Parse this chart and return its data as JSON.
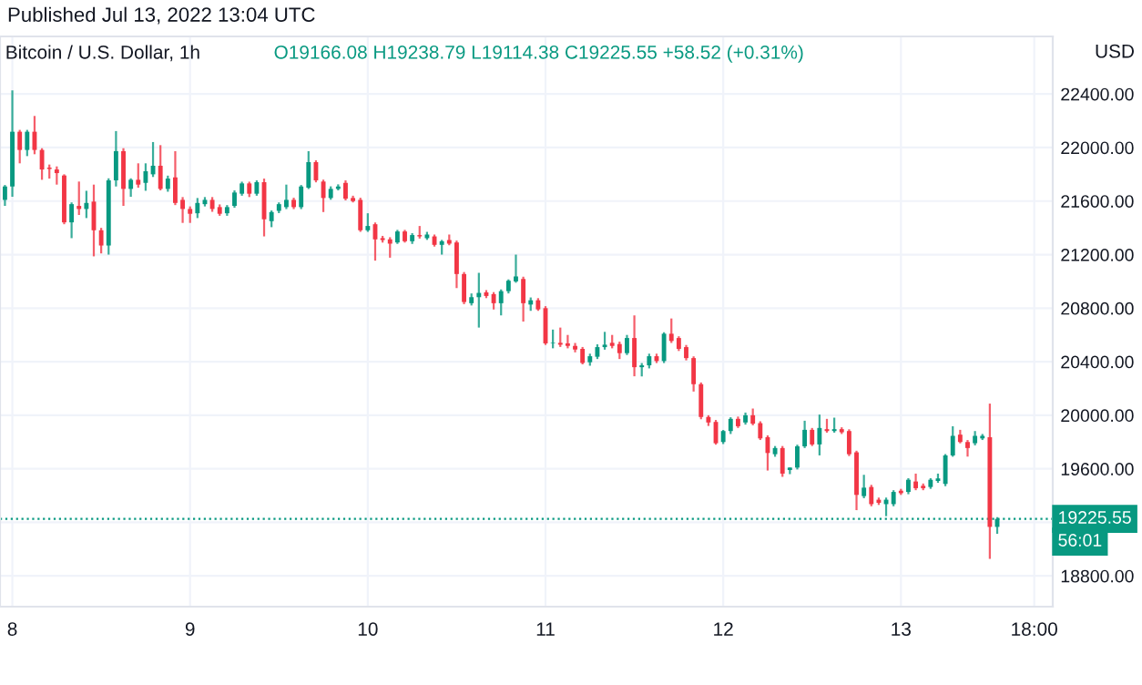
{
  "chart_data": {
    "type": "candlestick",
    "title": "Bitcoin / U.S. Dollar, 1h",
    "subtitle": "O19166.08 H19238.79 L19114.38 C19225.55 +58.52 (+0.31%)",
    "ylabel": "USD",
    "annotations": [
      "Published Jul 13, 2022 13:04 UTC",
      "56:01"
    ],
    "x": [
      "2022-07-07T23:00",
      "2022-07-08T00:00",
      "2022-07-08T01:00",
      "2022-07-08T02:00",
      "2022-07-08T03:00",
      "2022-07-08T04:00",
      "2022-07-08T05:00",
      "2022-07-08T06:00",
      "2022-07-08T07:00",
      "2022-07-08T08:00",
      "2022-07-08T09:00",
      "2022-07-08T10:00",
      "2022-07-08T11:00",
      "2022-07-08T12:00",
      "2022-07-08T13:00",
      "2022-07-08T14:00",
      "2022-07-08T15:00",
      "2022-07-08T16:00",
      "2022-07-08T17:00",
      "2022-07-08T18:00",
      "2022-07-08T19:00",
      "2022-07-08T20:00",
      "2022-07-08T21:00",
      "2022-07-08T22:00",
      "2022-07-08T23:00",
      "2022-07-09T00:00",
      "2022-07-09T01:00",
      "2022-07-09T02:00",
      "2022-07-09T03:00",
      "2022-07-09T04:00",
      "2022-07-09T05:00",
      "2022-07-09T06:00",
      "2022-07-09T07:00",
      "2022-07-09T08:00",
      "2022-07-09T09:00",
      "2022-07-09T10:00",
      "2022-07-09T11:00",
      "2022-07-09T12:00",
      "2022-07-09T13:00",
      "2022-07-09T14:00",
      "2022-07-09T15:00",
      "2022-07-09T16:00",
      "2022-07-09T17:00",
      "2022-07-09T18:00",
      "2022-07-09T19:00",
      "2022-07-09T20:00",
      "2022-07-09T21:00",
      "2022-07-09T22:00",
      "2022-07-09T23:00",
      "2022-07-10T00:00",
      "2022-07-10T01:00",
      "2022-07-10T02:00",
      "2022-07-10T03:00",
      "2022-07-10T04:00",
      "2022-07-10T05:00",
      "2022-07-10T06:00",
      "2022-07-10T07:00",
      "2022-07-10T08:00",
      "2022-07-10T09:00",
      "2022-07-10T10:00",
      "2022-07-10T11:00",
      "2022-07-10T12:00",
      "2022-07-10T13:00",
      "2022-07-10T14:00",
      "2022-07-10T15:00",
      "2022-07-10T16:00",
      "2022-07-10T17:00",
      "2022-07-10T18:00",
      "2022-07-10T19:00",
      "2022-07-10T20:00",
      "2022-07-10T21:00",
      "2022-07-10T22:00",
      "2022-07-10T23:00",
      "2022-07-11T00:00",
      "2022-07-11T01:00",
      "2022-07-11T02:00",
      "2022-07-11T03:00",
      "2022-07-11T04:00",
      "2022-07-11T05:00",
      "2022-07-11T06:00",
      "2022-07-11T07:00",
      "2022-07-11T08:00",
      "2022-07-11T09:00",
      "2022-07-11T10:00",
      "2022-07-11T11:00",
      "2022-07-11T12:00",
      "2022-07-11T13:00",
      "2022-07-11T14:00",
      "2022-07-11T15:00",
      "2022-07-11T16:00",
      "2022-07-11T17:00",
      "2022-07-11T18:00",
      "2022-07-11T19:00",
      "2022-07-11T20:00",
      "2022-07-11T21:00",
      "2022-07-11T22:00",
      "2022-07-11T23:00",
      "2022-07-12T00:00",
      "2022-07-12T01:00",
      "2022-07-12T02:00",
      "2022-07-12T03:00",
      "2022-07-12T04:00",
      "2022-07-12T05:00",
      "2022-07-12T06:00",
      "2022-07-12T07:00",
      "2022-07-12T08:00",
      "2022-07-12T09:00",
      "2022-07-12T10:00",
      "2022-07-12T11:00",
      "2022-07-12T12:00",
      "2022-07-12T13:00",
      "2022-07-12T14:00",
      "2022-07-12T15:00",
      "2022-07-12T16:00",
      "2022-07-12T17:00",
      "2022-07-12T18:00",
      "2022-07-12T19:00",
      "2022-07-12T20:00",
      "2022-07-12T21:00",
      "2022-07-12T22:00",
      "2022-07-12T23:00",
      "2022-07-13T00:00",
      "2022-07-13T01:00",
      "2022-07-13T02:00",
      "2022-07-13T03:00",
      "2022-07-13T04:00",
      "2022-07-13T05:00",
      "2022-07-13T06:00",
      "2022-07-13T07:00",
      "2022-07-13T08:00",
      "2022-07-13T09:00",
      "2022-07-13T10:00",
      "2022-07-13T11:00",
      "2022-07-13T12:00",
      "2022-07-13T13:00"
    ],
    "ohlc": [
      [
        21609,
        21720,
        21564,
        21709
      ],
      [
        21709,
        22427,
        21632,
        22118
      ],
      [
        22118,
        22132,
        21882,
        21982
      ],
      [
        21982,
        22132,
        21936,
        22118
      ],
      [
        22118,
        22236,
        21950,
        21982
      ],
      [
        21982,
        21995,
        21759,
        21836
      ],
      [
        21850,
        21873,
        21768,
        21840
      ],
      [
        21836,
        21859,
        21723,
        21809
      ],
      [
        21791,
        21800,
        21427,
        21441
      ],
      [
        21441,
        21590,
        21323,
        21577
      ],
      [
        21564,
        21746,
        21496,
        21541
      ],
      [
        21541,
        21677,
        21473,
        21586
      ],
      [
        21596,
        21723,
        21187,
        21382
      ],
      [
        21382,
        21400,
        21209,
        21268
      ],
      [
        21268,
        21770,
        21200,
        21755
      ],
      [
        21755,
        22123,
        21709,
        21973
      ],
      [
        21973,
        21995,
        21564,
        21691
      ],
      [
        21691,
        21770,
        21632,
        21759
      ],
      [
        21759,
        21882,
        21700,
        21723
      ],
      [
        21736,
        21882,
        21677,
        21823
      ],
      [
        21800,
        22041,
        21780,
        21864
      ],
      [
        21864,
        22018,
        21680,
        21691
      ],
      [
        21691,
        21790,
        21670,
        21768
      ],
      [
        21777,
        21973,
        21570,
        21586
      ],
      [
        21609,
        21630,
        21437,
        21541
      ],
      [
        21541,
        21560,
        21437,
        21505
      ],
      [
        21509,
        21623,
        21473,
        21586
      ],
      [
        21577,
        21630,
        21560,
        21609
      ],
      [
        21609,
        21630,
        21520,
        21541
      ],
      [
        21555,
        21575,
        21490,
        21505
      ],
      [
        21509,
        21570,
        21490,
        21555
      ],
      [
        21564,
        21680,
        21550,
        21664
      ],
      [
        21655,
        21745,
        21640,
        21732
      ],
      [
        21732,
        21745,
        21630,
        21655
      ],
      [
        21655,
        21755,
        21640,
        21741
      ],
      [
        21741,
        21768,
        21336,
        21464
      ],
      [
        21450,
        21530,
        21405,
        21518
      ],
      [
        21527,
        21590,
        21510,
        21577
      ],
      [
        21555,
        21723,
        21540,
        21609
      ],
      [
        21609,
        21625,
        21540,
        21555
      ],
      [
        21555,
        21720,
        21540,
        21709
      ],
      [
        21700,
        21973,
        21690,
        21891
      ],
      [
        21891,
        21905,
        21740,
        21755
      ],
      [
        21746,
        21760,
        21518,
        21623
      ],
      [
        21623,
        21710,
        21610,
        21691
      ],
      [
        21691,
        21725,
        21680,
        21709
      ],
      [
        21736,
        21755,
        21605,
        21618
      ],
      [
        21623,
        21640,
        21590,
        21600
      ],
      [
        21609,
        21625,
        21370,
        21382
      ],
      [
        21382,
        21509,
        21370,
        21414
      ],
      [
        21427,
        21440,
        21155,
        21314
      ],
      [
        21323,
        21340,
        21290,
        21309
      ],
      [
        21314,
        21330,
        21177,
        21282
      ],
      [
        21291,
        21385,
        21280,
        21373
      ],
      [
        21373,
        21385,
        21290,
        21300
      ],
      [
        21300,
        21360,
        21280,
        21346
      ],
      [
        21346,
        21414,
        21320,
        21336
      ],
      [
        21323,
        21370,
        21310,
        21350
      ],
      [
        21336,
        21350,
        21260,
        21273
      ],
      [
        21273,
        21310,
        21200,
        21300
      ],
      [
        21309,
        21350,
        21270,
        21282
      ],
      [
        21291,
        21305,
        20950,
        21055
      ],
      [
        21055,
        21070,
        20830,
        20846
      ],
      [
        20837,
        20910,
        20820,
        20882
      ],
      [
        20882,
        21064,
        20655,
        20914
      ],
      [
        20918,
        20935,
        20875,
        20891
      ],
      [
        20905,
        20920,
        20790,
        20837
      ],
      [
        20837,
        20940,
        20746,
        20927
      ],
      [
        20927,
        21015,
        20910,
        21005
      ],
      [
        21000,
        21200,
        20990,
        21037
      ],
      [
        21018,
        21035,
        20700,
        20837
      ],
      [
        20827,
        20880,
        20780,
        20859
      ],
      [
        20859,
        20875,
        20780,
        20791
      ],
      [
        20800,
        20815,
        20525,
        20537
      ],
      [
        20537,
        20640,
        20500,
        20541
      ],
      [
        20541,
        20655,
        20510,
        20527
      ],
      [
        20537,
        20600,
        20500,
        20518
      ],
      [
        20518,
        20540,
        20470,
        20491
      ],
      [
        20496,
        20510,
        20380,
        20391
      ],
      [
        20396,
        20460,
        20370,
        20441
      ],
      [
        20437,
        20530,
        20420,
        20509
      ],
      [
        20509,
        20623,
        20490,
        20527
      ],
      [
        20541,
        20600,
        20500,
        20518
      ],
      [
        20532,
        20550,
        20420,
        20464
      ],
      [
        20464,
        20600,
        20450,
        20577
      ],
      [
        20577,
        20746,
        20291,
        20359
      ],
      [
        20359,
        20390,
        20290,
        20373
      ],
      [
        20373,
        20460,
        20350,
        20441
      ],
      [
        20441,
        20460,
        20390,
        20405
      ],
      [
        20405,
        20620,
        20390,
        20609
      ],
      [
        20609,
        20723,
        20540,
        20555
      ],
      [
        20577,
        20590,
        20480,
        20496
      ],
      [
        20509,
        20525,
        20410,
        20427
      ],
      [
        20427,
        20440,
        20177,
        20232
      ],
      [
        20232,
        20245,
        19970,
        19987
      ],
      [
        19987,
        20000,
        19920,
        19946
      ],
      [
        19950,
        19965,
        19780,
        19791
      ],
      [
        19800,
        19890,
        19785,
        19882
      ],
      [
        19882,
        19985,
        19860,
        19973
      ],
      [
        19973,
        19990,
        19905,
        19918
      ],
      [
        19946,
        20020,
        19930,
        20000
      ],
      [
        20000,
        20050,
        19925,
        19937
      ],
      [
        19941,
        19955,
        19815,
        19827
      ],
      [
        19836,
        19850,
        19587,
        19718
      ],
      [
        19709,
        19770,
        19690,
        19755
      ],
      [
        19755,
        19770,
        19540,
        19564
      ],
      [
        19591,
        19610,
        19560,
        19609
      ],
      [
        19609,
        19780,
        19595,
        19768
      ],
      [
        19768,
        19959,
        19755,
        19891
      ],
      [
        19891,
        19905,
        19770,
        19782
      ],
      [
        19782,
        20005,
        19700,
        19905
      ],
      [
        19896,
        19973,
        19870,
        19882
      ],
      [
        19882,
        19982,
        19870,
        19896
      ],
      [
        19896,
        19910,
        19860,
        19873
      ],
      [
        19882,
        19895,
        19695,
        19709
      ],
      [
        19723,
        19735,
        19291,
        19405
      ],
      [
        19396,
        19555,
        19380,
        19459
      ],
      [
        19464,
        19480,
        19320,
        19336
      ],
      [
        19369,
        19385,
        19330,
        19346
      ],
      [
        19336,
        19385,
        19246,
        19369
      ],
      [
        19336,
        19440,
        19320,
        19427
      ],
      [
        19436,
        19450,
        19405,
        19418
      ],
      [
        19427,
        19530,
        19410,
        19518
      ],
      [
        19505,
        19564,
        19440,
        19455
      ],
      [
        19473,
        19490,
        19440,
        19455
      ],
      [
        19464,
        19530,
        19450,
        19518
      ],
      [
        19509,
        19564,
        19495,
        19528
      ],
      [
        19487,
        19710,
        19470,
        19700
      ],
      [
        19700,
        19918,
        19690,
        19846
      ],
      [
        19855,
        19891,
        19790,
        19800
      ],
      [
        19800,
        19815,
        19691,
        19755
      ],
      [
        19791,
        19882,
        19775,
        19846
      ],
      [
        19827,
        19860,
        19815,
        19846
      ],
      [
        19836,
        20087,
        18927,
        19166
      ],
      [
        19166.08,
        19238.79,
        19114.38,
        19225.55
      ]
    ],
    "colors": [
      "#089981",
      "#089981",
      "#f23645",
      "#089981",
      "#f23645",
      "#f23645",
      "#f23645",
      "#f23645",
      "#f23645",
      "#089981",
      "#f23645",
      "#089981",
      "#f23645",
      "#f23645",
      "#089981",
      "#089981",
      "#f23645",
      "#089981",
      "#f23645",
      "#089981",
      "#089981",
      "#f23645",
      "#089981",
      "#f23645",
      "#f23645",
      "#f23645",
      "#089981",
      "#089981",
      "#f23645",
      "#f23645",
      "#089981",
      "#089981",
      "#089981",
      "#f23645",
      "#089981",
      "#f23645",
      "#089981",
      "#089981",
      "#089981",
      "#f23645",
      "#089981",
      "#089981",
      "#f23645",
      "#f23645",
      "#089981",
      "#089981",
      "#f23645",
      "#f23645",
      "#f23645",
      "#089981",
      "#f23645",
      "#f23645",
      "#f23645",
      "#089981",
      "#f23645",
      "#089981",
      "#f23645",
      "#089981",
      "#f23645",
      "#089981",
      "#f23645",
      "#f23645",
      "#f23645",
      "#089981",
      "#089981",
      "#f23645",
      "#f23645",
      "#089981",
      "#089981",
      "#089981",
      "#f23645",
      "#089981",
      "#f23645",
      "#f23645",
      "#089981",
      "#f23645",
      "#f23645",
      "#f23645",
      "#f23645",
      "#089981",
      "#089981",
      "#089981",
      "#f23645",
      "#f23645",
      "#089981",
      "#f23645",
      "#089981",
      "#089981",
      "#f23645",
      "#089981",
      "#f23645",
      "#f23645",
      "#f23645",
      "#f23645",
      "#f23645",
      "#f23645",
      "#f23645",
      "#089981",
      "#089981",
      "#f23645",
      "#089981",
      "#f23645",
      "#f23645",
      "#f23645",
      "#089981",
      "#f23645",
      "#089981",
      "#089981",
      "#089981",
      "#f23645",
      "#089981",
      "#f23645",
      "#089981",
      "#f23645",
      "#f23645",
      "#f23645",
      "#089981",
      "#f23645",
      "#f23645",
      "#089981",
      "#089981",
      "#f23645",
      "#089981",
      "#f23645",
      "#f23645",
      "#089981",
      "#089981",
      "#089981",
      "#089981",
      "#f23645",
      "#f23645",
      "#089981",
      "#089981",
      "#f23645",
      "#089981"
    ],
    "xlim": [
      "2022-07-07T22:20",
      "2022-07-13T20:30"
    ],
    "xticks": [
      {
        "value": "2022-07-08",
        "label": "8"
      },
      {
        "value": "2022-07-09",
        "label": "9"
      },
      {
        "value": "2022-07-10",
        "label": "10"
      },
      {
        "value": "2022-07-11",
        "label": "11"
      },
      {
        "value": "2022-07-12",
        "label": "12"
      },
      {
        "value": "2022-07-13",
        "label": "13"
      },
      {
        "value": "2022-07-13T18:00",
        "label": "18:00"
      }
    ],
    "ylim": [
      18570,
      22830
    ],
    "yticks": [
      {
        "value": 18800,
        "label": "18800.00"
      },
      {
        "value": 19200,
        "label": null
      },
      {
        "value": 19600,
        "label": "19600.00"
      },
      {
        "value": 20000,
        "label": "20000.00"
      },
      {
        "value": 20400,
        "label": "20400.00"
      },
      {
        "value": 20800,
        "label": "20800.00"
      },
      {
        "value": 21200,
        "label": "21200.00"
      },
      {
        "value": 21600,
        "label": "21600.00"
      },
      {
        "value": 22000,
        "label": "22000.00"
      },
      {
        "value": 22400,
        "label": "22400.00"
      }
    ],
    "ref_lines": [
      {
        "axis": "y",
        "value": 19225.55,
        "label": "19225.55",
        "color": "#089981",
        "line_style": "dotted"
      }
    ],
    "grid": true
  }
}
